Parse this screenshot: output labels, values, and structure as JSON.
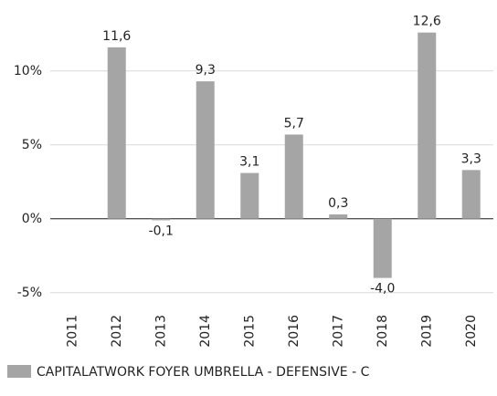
{
  "chart_data": {
    "type": "bar",
    "categories": [
      "2011",
      "2012",
      "2013",
      "2014",
      "2015",
      "2016",
      "2017",
      "2018",
      "2019",
      "2020"
    ],
    "series": [
      {
        "name": "CAPITALATWORK FOYER UMBRELLA - DEFENSIVE - C",
        "color": "#a5a5a5",
        "values": [
          null,
          11.6,
          -0.1,
          9.3,
          3.1,
          5.7,
          0.3,
          -4.0,
          12.6,
          3.3
        ],
        "value_labels": [
          null,
          "11,6",
          "-0,1",
          "9,3",
          "3,1",
          "5,7",
          "0,3",
          "-4,0",
          "12,6",
          "3,3"
        ]
      }
    ],
    "ylim": [
      -6,
      14
    ],
    "yticks": [
      {
        "value": -5,
        "label": "-5%"
      },
      {
        "value": 0,
        "label": "0%"
      },
      {
        "value": 5,
        "label": "5%"
      },
      {
        "value": 10,
        "label": "10%"
      }
    ],
    "grid": true,
    "legend": "bottom"
  }
}
